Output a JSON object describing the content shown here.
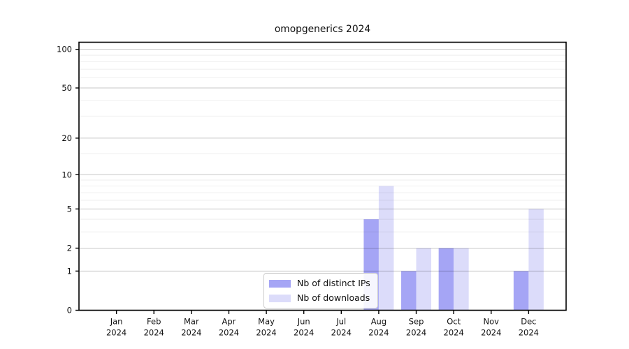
{
  "title": "omopgenerics 2024",
  "chart_data": {
    "type": "bar",
    "title": "omopgenerics 2024",
    "y_scale": "log1p",
    "categories": [
      "Jan",
      "Feb",
      "Mar",
      "Apr",
      "May",
      "Jun",
      "Jul",
      "Aug",
      "Sep",
      "Oct",
      "Nov",
      "Dec"
    ],
    "category_year": "2024",
    "series": [
      {
        "name": "Nb of distinct IPs",
        "key": "ips",
        "color": "#a5a5f5",
        "values": [
          0,
          0,
          0,
          0,
          0,
          0,
          0,
          4,
          1,
          2,
          0,
          1
        ]
      },
      {
        "name": "Nb of downloads",
        "key": "downloads",
        "color": "#dcdcfa",
        "values": [
          0,
          0,
          0,
          0,
          0,
          0,
          0,
          8,
          2,
          2,
          0,
          5
        ]
      }
    ],
    "y_major_ticks": [
      0,
      1,
      2,
      5,
      10,
      20,
      50,
      100
    ],
    "y_minor_gridlines": [
      3,
      4,
      6,
      7,
      8,
      9,
      15,
      30,
      40,
      60,
      70,
      80,
      90
    ],
    "ylim": [
      0,
      113
    ],
    "grid": "horizontal",
    "grid_over_bars": true,
    "legend_position": "lower-center-inside"
  },
  "colors": {
    "background": "#ffffff",
    "axis": "#000000",
    "text": "#111111",
    "major_grid": "rgba(0,0,0,0.22)",
    "minor_grid": "rgba(0,0,0,0.07)",
    "legend_border": "#cccccc",
    "legend_bg": "#ffffff"
  }
}
